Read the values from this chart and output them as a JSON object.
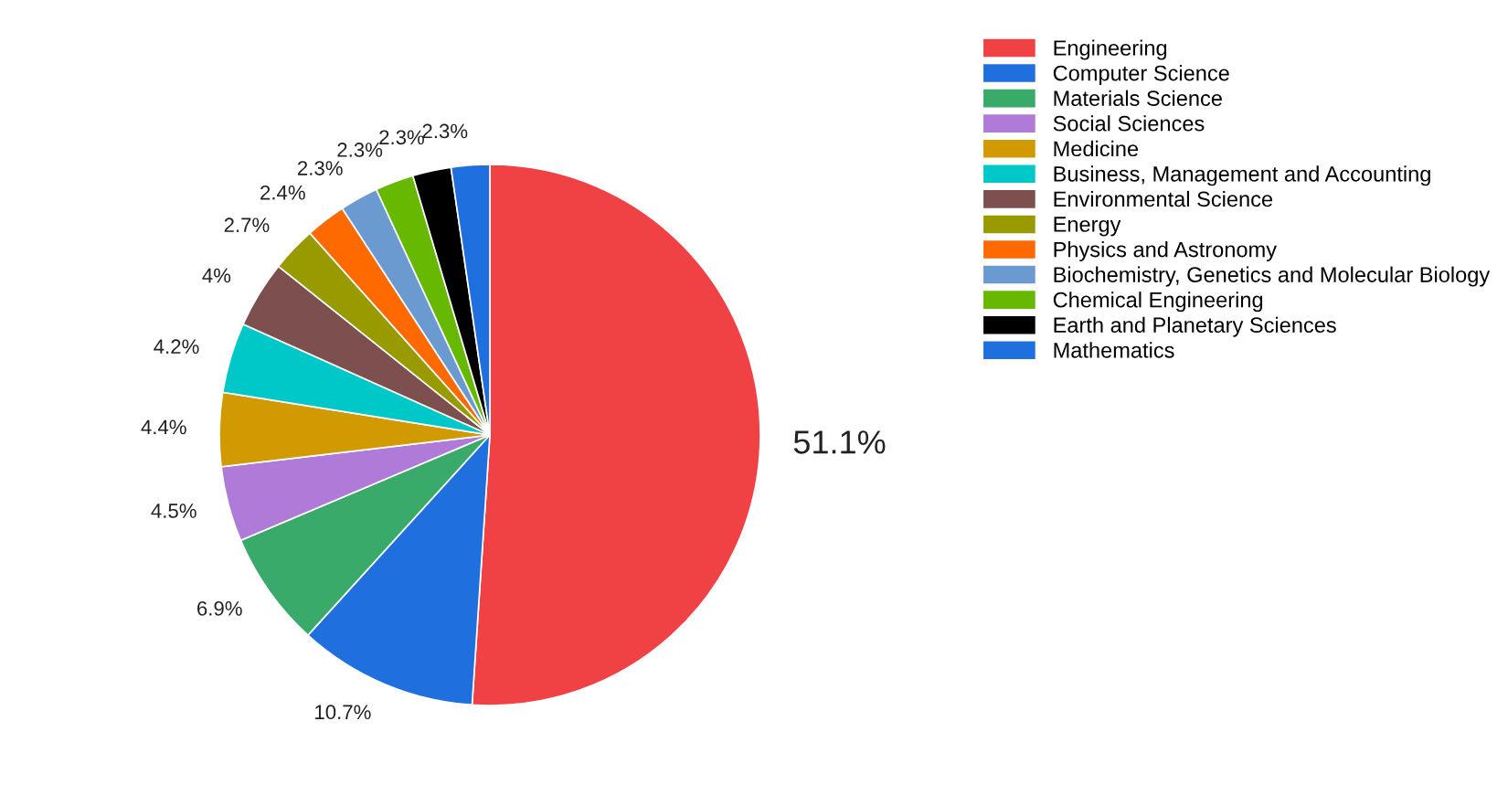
{
  "chart_data": {
    "type": "pie",
    "categories": [
      "Engineering",
      "Computer Science",
      "Materials Science",
      "Social Sciences",
      "Medicine",
      "Business, Management and Accounting",
      "Environmental Science",
      "Energy",
      "Physics and Astronomy",
      "Biochemistry, Genetics and Molecular Biology",
      "Chemical Engineering",
      "Earth and Planetary Sciences",
      "Mathematics"
    ],
    "values": [
      51.1,
      10.7,
      6.9,
      4.5,
      4.4,
      4.2,
      4,
      2.7,
      2.4,
      2.3,
      2.3,
      2.3,
      2.3
    ],
    "colors": [
      "#f04245",
      "#1f6fde",
      "#3aaa6a",
      "#b07ad8",
      "#d09a00",
      "#00c8c8",
      "#7d4f4f",
      "#999900",
      "#ff6a00",
      "#6a9ad0",
      "#66b800",
      "#000000",
      "#1f6fde"
    ],
    "value_labels": [
      "51.1%",
      "10.7%",
      "6.9%",
      "4.5%",
      "4.4%",
      "4.2%",
      "4%",
      "2.7%",
      "2.4%",
      "2.3%",
      "2.3%",
      "2.3%",
      "2.3%"
    ],
    "legend": "top right"
  }
}
